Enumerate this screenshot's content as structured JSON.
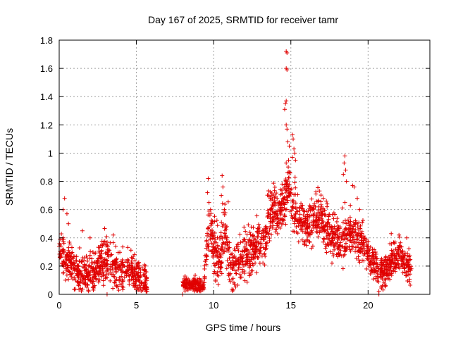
{
  "chart_data": {
    "type": "scatter",
    "title": "Day 167 of 2025, SRMTID for receiver tamr",
    "xlabel": "GPS time / hours",
    "ylabel": "SRMTID / TECUs",
    "xlim": [
      0,
      24
    ],
    "ylim": [
      0,
      1.8
    ],
    "x_ticks": [
      0,
      5,
      10,
      15,
      20
    ],
    "y_ticks": [
      0,
      0.2,
      0.4,
      0.6,
      0.8,
      1,
      1.2,
      1.4,
      1.6,
      1.8
    ],
    "x_tick_labels": [
      "0",
      "5",
      "10",
      "15",
      "20"
    ],
    "y_tick_labels": [
      "0",
      "0.2",
      "0.4",
      "0.6",
      "0.8",
      "1",
      "1.2",
      "1.4",
      "1.6",
      "1.8"
    ],
    "grid": true,
    "marker": "+",
    "color": "#e00000",
    "series": [
      {
        "name": "SRMTID",
        "segments": [
          {
            "x0": 0.0,
            "x1": 5.7,
            "base": [
              0.3,
              0.24,
              0.18,
              0.15,
              0.14,
              0.16,
              0.22,
              0.25,
              0.2,
              0.16,
              0.18,
              0.17,
              0.1,
              0.06
            ],
            "spread": 0.09,
            "density": 110
          },
          {
            "x0": 8.0,
            "x1": 9.4,
            "base": [
              0.08,
              0.07,
              0.06,
              0.07,
              0.06,
              0.07
            ],
            "spread": 0.03,
            "density": 110
          },
          {
            "x0": 9.4,
            "x1": 14.0,
            "base": [
              0.2,
              0.45,
              0.3,
              0.25,
              0.45,
              0.2,
              0.18,
              0.25,
              0.28,
              0.3,
              0.32,
              0.38,
              0.4,
              0.55,
              0.6
            ],
            "spread": 0.12,
            "density": 110
          },
          {
            "x0": 14.0,
            "x1": 16.0,
            "base": [
              0.55,
              0.6,
              0.65,
              0.8,
              0.6,
              0.55,
              0.5,
              0.45
            ],
            "spread": 0.12,
            "density": 110
          },
          {
            "x0": 16.0,
            "x1": 19.6,
            "base": [
              0.45,
              0.5,
              0.55,
              0.5,
              0.45,
              0.4,
              0.35,
              0.4,
              0.45,
              0.4,
              0.35
            ],
            "spread": 0.11,
            "density": 110
          },
          {
            "x0": 19.6,
            "x1": 22.8,
            "base": [
              0.35,
              0.3,
              0.22,
              0.18,
              0.15,
              0.2,
              0.25,
              0.28,
              0.22,
              0.15
            ],
            "spread": 0.08,
            "density": 110
          }
        ],
        "points": [
          [
            14.7,
            1.72
          ],
          [
            14.75,
            1.71
          ],
          [
            14.7,
            1.6
          ],
          [
            14.75,
            1.59
          ],
          [
            14.7,
            1.37
          ],
          [
            14.65,
            1.35
          ],
          [
            14.6,
            1.31
          ],
          [
            14.7,
            1.2
          ],
          [
            14.75,
            1.17
          ],
          [
            14.8,
            1.08
          ],
          [
            14.9,
            1.05
          ],
          [
            14.85,
            0.95
          ],
          [
            14.7,
            0.93
          ],
          [
            15.1,
            1.13
          ],
          [
            15.15,
            1.1
          ],
          [
            15.2,
            1.03
          ],
          [
            15.25,
            1.0
          ],
          [
            15.1,
            0.97
          ],
          [
            15.3,
            0.95
          ],
          [
            0.35,
            0.68
          ],
          [
            0.25,
            0.6
          ],
          [
            0.5,
            0.57
          ],
          [
            0.6,
            0.5
          ],
          [
            9.65,
            0.82
          ],
          [
            9.6,
            0.72
          ],
          [
            9.7,
            0.65
          ],
          [
            9.8,
            0.6
          ],
          [
            10.55,
            0.84
          ],
          [
            10.6,
            0.76
          ],
          [
            10.5,
            0.7
          ],
          [
            10.7,
            0.6
          ],
          [
            18.5,
            0.98
          ],
          [
            18.45,
            0.93
          ],
          [
            18.55,
            0.88
          ],
          [
            18.4,
            0.85
          ],
          [
            18.6,
            0.8
          ],
          [
            18.5,
            0.65
          ],
          [
            17.1,
            0.68
          ],
          [
            17.3,
            0.66
          ],
          [
            16.5,
            0.63
          ],
          [
            19.0,
            0.77
          ],
          [
            19.1,
            0.76
          ],
          [
            19.3,
            0.68
          ],
          [
            19.45,
            0.6
          ],
          [
            21.5,
            0.43
          ],
          [
            22.0,
            0.42
          ],
          [
            22.5,
            0.4
          ],
          [
            3.5,
            0.42
          ],
          [
            3.1,
            0.37
          ],
          [
            1.5,
            0.45
          ],
          [
            2.0,
            0.4
          ],
          [
            8.0,
            0.0
          ],
          [
            20.7,
            0.0
          ],
          [
            3.1,
            0.0
          ]
        ]
      }
    ]
  }
}
